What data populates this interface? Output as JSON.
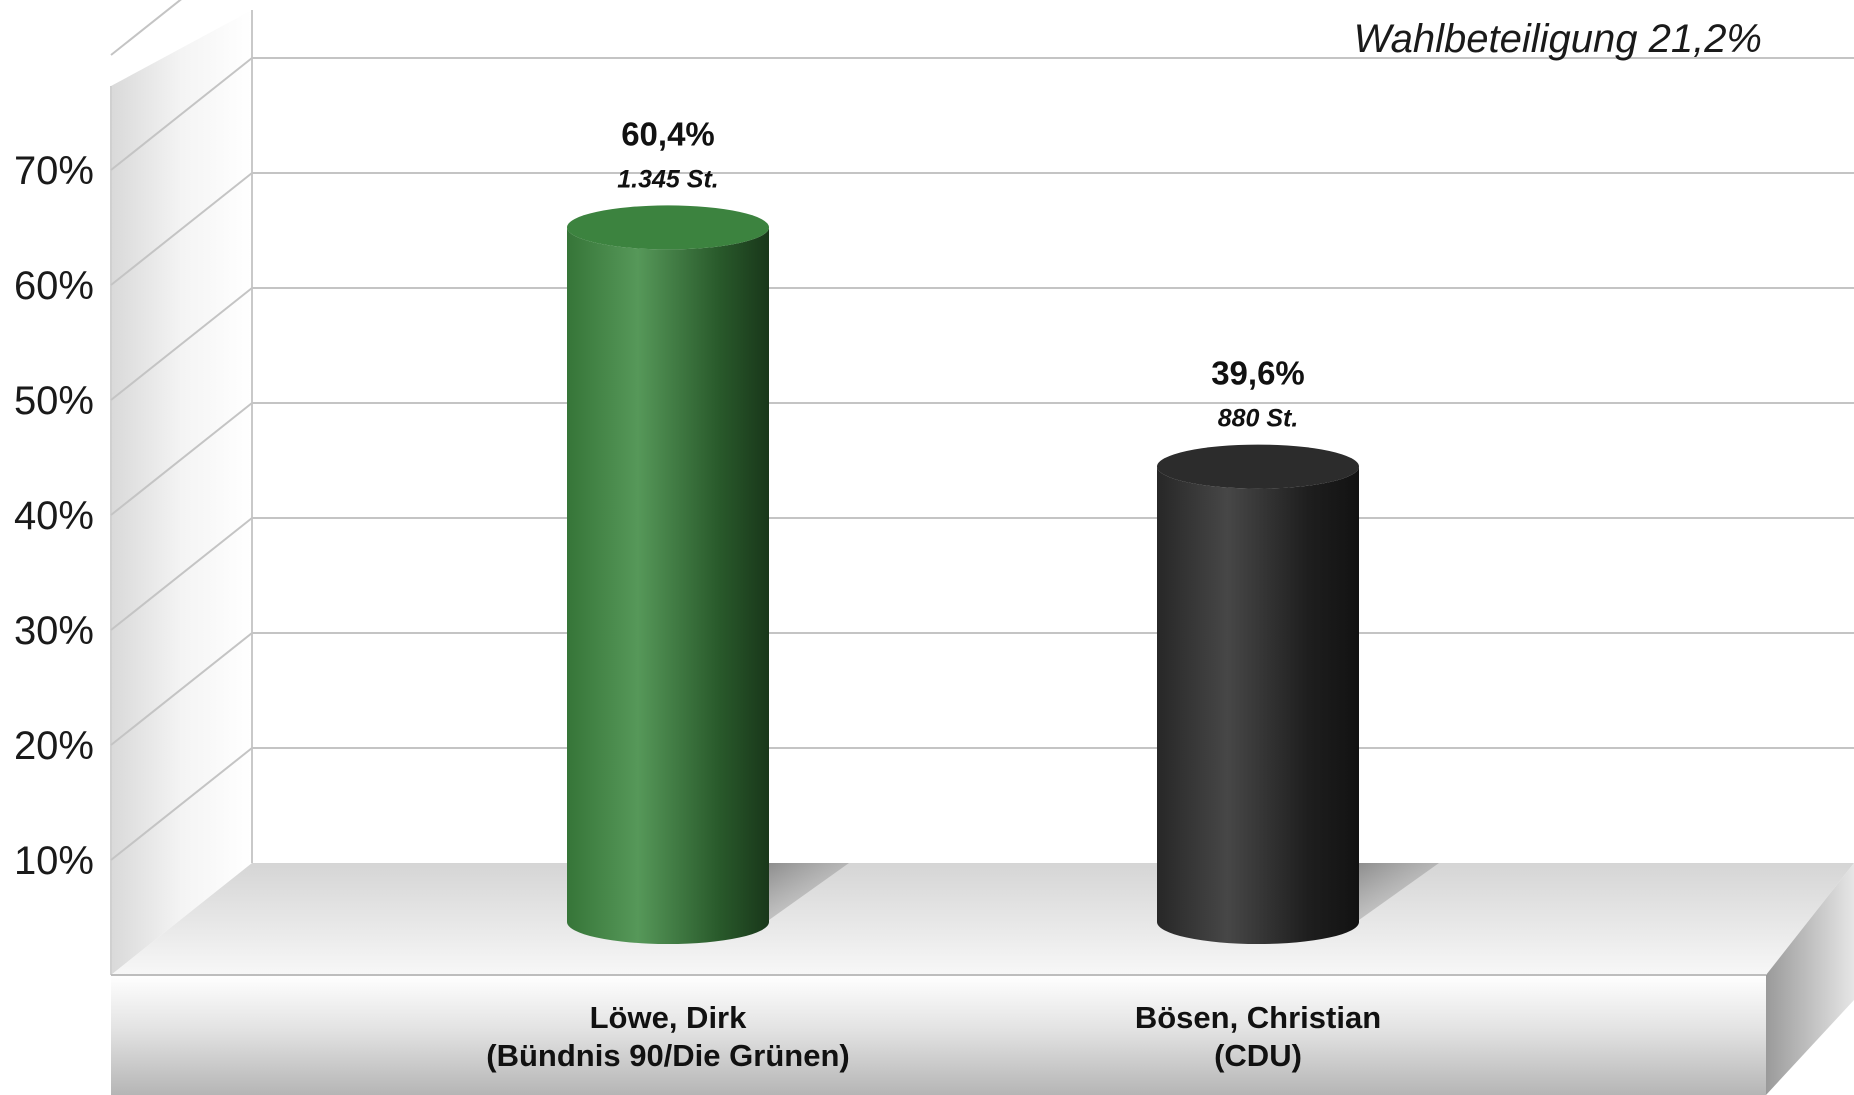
{
  "chart_data": {
    "type": "bar",
    "annotation": "Wahlbeteiligung 21,2%",
    "categories": [
      {
        "name": "Löwe, Dirk",
        "party": "(Bündnis 90/Die Grünen)"
      },
      {
        "name": "Bösen, Christian",
        "party": "(CDU)"
      }
    ],
    "series": [
      {
        "values": [
          60.4,
          39.6
        ],
        "value_labels": [
          "60,4%",
          "39,6%"
        ],
        "vote_labels": [
          "1.345 St.",
          "880 St."
        ],
        "colors": [
          "#3f8a42",
          "#2e2e2e"
        ]
      }
    ],
    "y_ticks": [
      10,
      20,
      30,
      40,
      50,
      60,
      70
    ],
    "y_tick_labels": [
      "10%",
      "20%",
      "30%",
      "40%",
      "50%",
      "60%",
      "70%"
    ],
    "ylim": [
      0,
      70
    ],
    "grid": true,
    "style": "3d-cylinder"
  }
}
